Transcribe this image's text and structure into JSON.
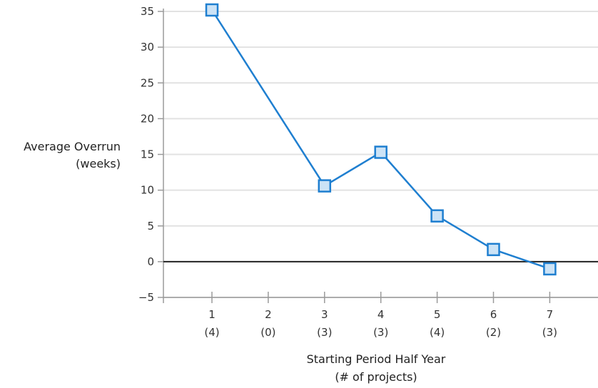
{
  "chart_data": {
    "type": "line",
    "title": "",
    "ylabel": [
      "Average Overrun",
      "(weeks)"
    ],
    "xlabel": [
      "Starting Period Half Year",
      "(# of projects)"
    ],
    "ylim": [
      -5,
      35
    ],
    "yticks": [
      35,
      30,
      25,
      20,
      15,
      10,
      5,
      0,
      -5
    ],
    "ytick_labels": [
      "35",
      "30",
      "25",
      "20",
      "15",
      "10",
      "5",
      "0",
      "−5"
    ],
    "categories": [
      "1",
      "2",
      "3",
      "4",
      "5",
      "6",
      "7"
    ],
    "category_sublabels": [
      "(4)",
      "(0)",
      "(3)",
      "(3)",
      "(4)",
      "(2)",
      "(3)"
    ],
    "grid": true,
    "zero_line": true,
    "series": [
      {
        "points": [
          {
            "x": "1",
            "y": 35.2
          },
          {
            "x": "3",
            "y": 10.6
          },
          {
            "x": "4",
            "y": 15.3
          },
          {
            "x": "5",
            "y": 6.4
          },
          {
            "x": "6",
            "y": 1.7
          },
          {
            "x": "7",
            "y": -1.0
          }
        ],
        "line_color": "#1f7fd0",
        "marker": "square",
        "marker_fill": "#cce3f6",
        "marker_stroke": "#1f7fd0"
      }
    ]
  }
}
